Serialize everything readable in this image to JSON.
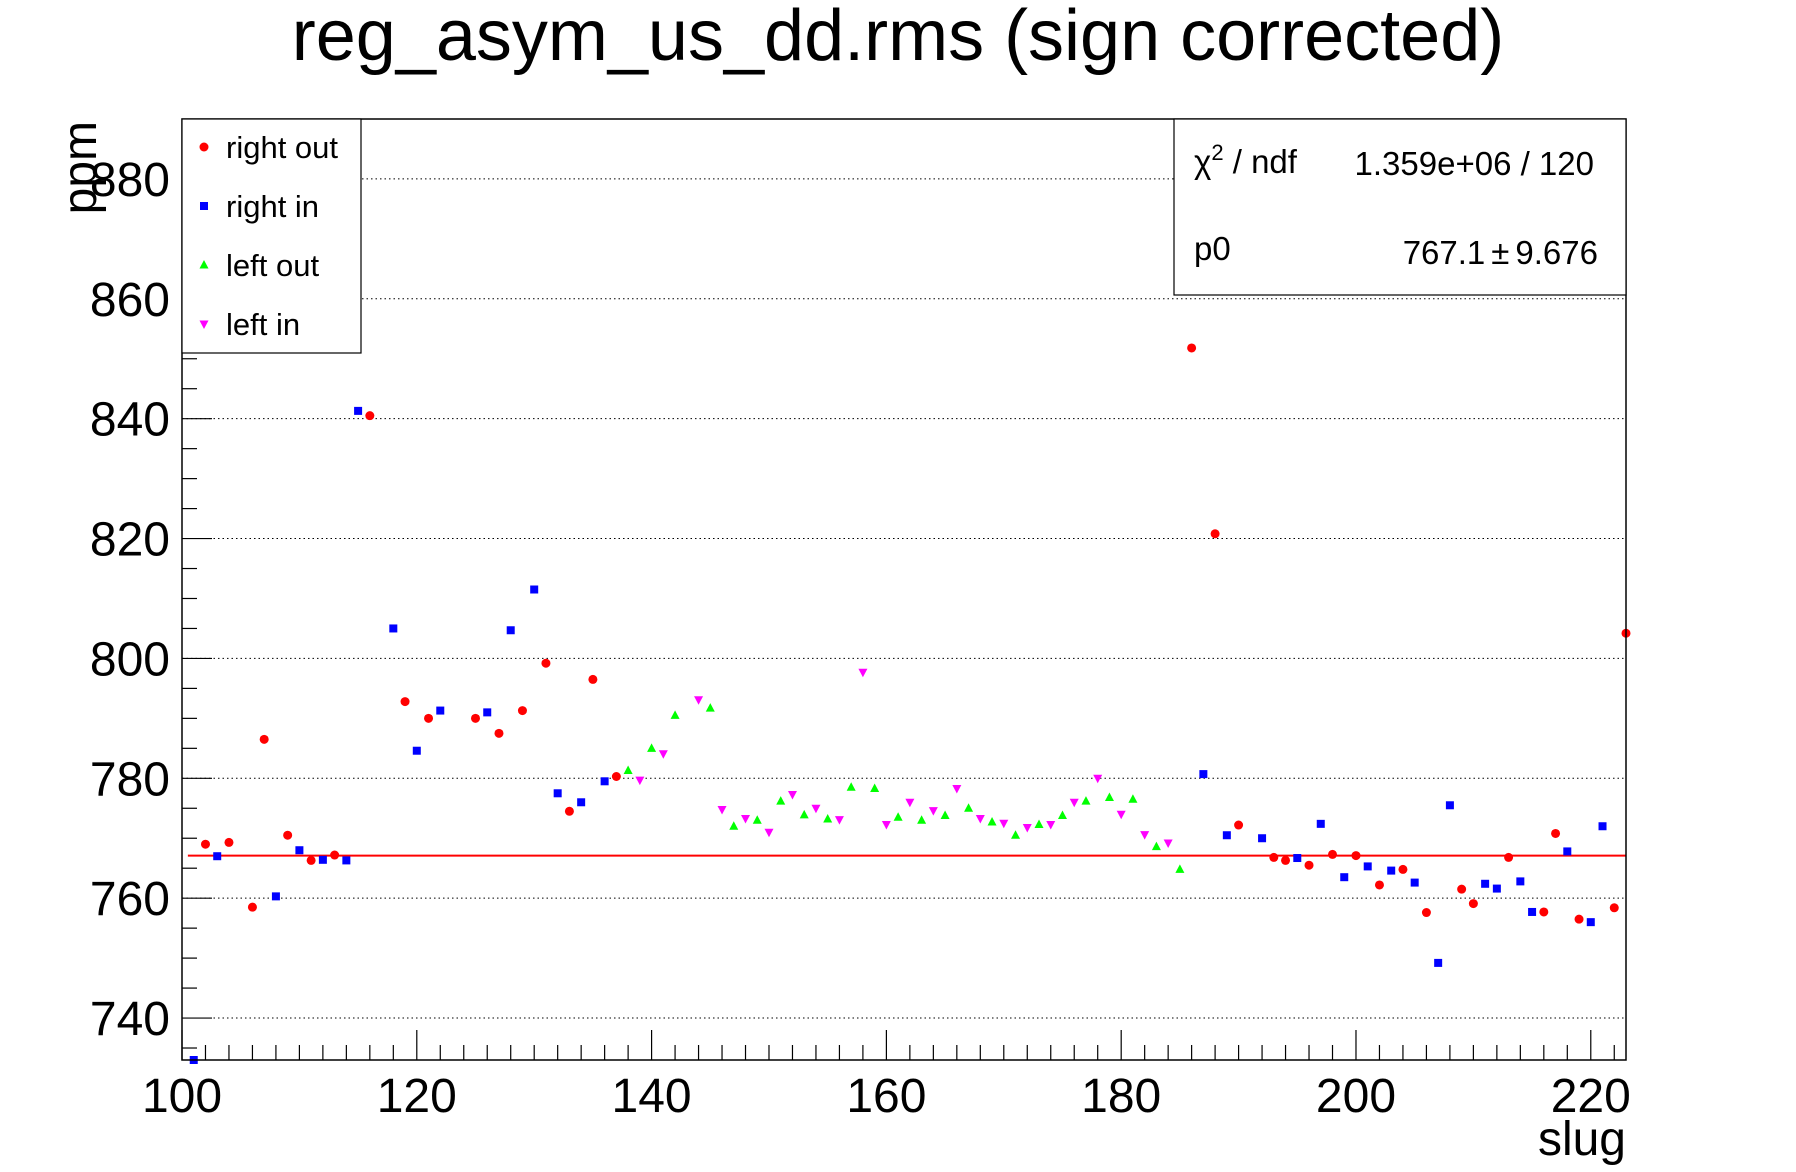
{
  "chart_data": {
    "type": "scatter",
    "title": "reg_asym_us_dd.rms (sign corrected)",
    "xlabel": "slug",
    "ylabel": "ppm",
    "xlim": [
      100,
      223
    ],
    "ylim": [
      733,
      890
    ],
    "x_ticks": [
      100,
      120,
      140,
      160,
      180,
      200,
      220
    ],
    "y_ticks": [
      740,
      760,
      780,
      800,
      820,
      840,
      860,
      880
    ],
    "grid": "horizontal dotted",
    "legend_position": "top-left",
    "fit_box_position": "top-right",
    "series": [
      {
        "name": "right out",
        "color": "#ff0000",
        "marker": "circle",
        "points": [
          [
            102,
            769
          ],
          [
            104,
            769.3
          ],
          [
            106,
            758.5
          ],
          [
            107,
            786.5
          ],
          [
            109,
            770.5
          ],
          [
            111,
            766.3
          ],
          [
            113,
            767.2
          ],
          [
            116,
            840.5
          ],
          [
            119,
            792.8
          ],
          [
            121,
            790
          ],
          [
            125,
            790
          ],
          [
            127,
            787.5
          ],
          [
            129,
            791.3
          ],
          [
            131,
            799.2
          ],
          [
            133,
            774.5
          ],
          [
            135,
            796.5
          ],
          [
            137,
            780.3
          ],
          [
            186,
            851.8
          ],
          [
            188,
            820.8
          ],
          [
            190,
            772.2
          ],
          [
            193,
            766.8
          ],
          [
            194,
            766.3
          ],
          [
            196,
            765.5
          ],
          [
            198,
            767.3
          ],
          [
            200,
            767.1
          ],
          [
            202,
            762.2
          ],
          [
            204,
            764.8
          ],
          [
            206,
            757.6
          ],
          [
            209,
            761.5
          ],
          [
            210,
            759.1
          ],
          [
            213,
            766.8
          ],
          [
            216,
            757.7
          ],
          [
            217,
            770.8
          ],
          [
            219,
            756.5
          ],
          [
            222,
            758.4
          ],
          [
            223,
            804.2
          ]
        ]
      },
      {
        "name": "right in",
        "color": "#0000ff",
        "marker": "square",
        "points": [
          [
            101,
            733
          ],
          [
            103,
            767
          ],
          [
            108,
            760.3
          ],
          [
            110,
            768
          ],
          [
            112,
            766.4
          ],
          [
            114,
            766.3
          ],
          [
            115,
            841.3
          ],
          [
            118,
            805
          ],
          [
            120,
            784.6
          ],
          [
            122,
            791.3
          ],
          [
            126,
            791
          ],
          [
            128,
            804.7
          ],
          [
            130,
            811.5
          ],
          [
            132,
            777.5
          ],
          [
            134,
            776
          ],
          [
            136,
            779.5
          ],
          [
            187,
            780.7
          ],
          [
            189,
            770.5
          ],
          [
            192,
            770
          ],
          [
            195,
            766.7
          ],
          [
            197,
            772.4
          ],
          [
            199,
            763.5
          ],
          [
            201,
            765.3
          ],
          [
            203,
            764.6
          ],
          [
            205,
            762.6
          ],
          [
            207,
            749.2
          ],
          [
            208,
            775.5
          ],
          [
            211,
            762.4
          ],
          [
            212,
            761.6
          ],
          [
            214,
            762.8
          ],
          [
            215,
            757.7
          ],
          [
            218,
            767.8
          ],
          [
            220,
            756
          ],
          [
            221,
            772
          ]
        ]
      },
      {
        "name": "left out",
        "color": "#00ff00",
        "marker": "triangle-up",
        "points": [
          [
            138,
            781.3
          ],
          [
            140,
            785
          ],
          [
            142,
            790.5
          ],
          [
            145,
            791.7
          ],
          [
            147,
            772
          ],
          [
            149,
            773
          ],
          [
            151,
            776.2
          ],
          [
            153,
            773.9
          ],
          [
            155,
            773.2
          ],
          [
            157,
            778.5
          ],
          [
            159,
            778.3
          ],
          [
            161,
            773.5
          ],
          [
            163,
            773
          ],
          [
            165,
            773.8
          ],
          [
            167,
            775
          ],
          [
            169,
            772.7
          ],
          [
            171,
            770.5
          ],
          [
            173,
            772.3
          ],
          [
            175,
            773.8
          ],
          [
            177,
            776.2
          ],
          [
            179,
            776.8
          ],
          [
            181,
            776.5
          ],
          [
            183,
            768.6
          ],
          [
            185,
            764.8
          ]
        ]
      },
      {
        "name": "left in",
        "color": "#ff00ff",
        "marker": "triangle-down",
        "points": [
          [
            139,
            779.7
          ],
          [
            141,
            784.1
          ],
          [
            144,
            793.1
          ],
          [
            146,
            774.8
          ],
          [
            148,
            773.3
          ],
          [
            150,
            771
          ],
          [
            152,
            777.3
          ],
          [
            154,
            775
          ],
          [
            156,
            773.1
          ],
          [
            158,
            797.7
          ],
          [
            160,
            772.3
          ],
          [
            162,
            776
          ],
          [
            164,
            774.6
          ],
          [
            166,
            778.3
          ],
          [
            168,
            773.3
          ],
          [
            170,
            772.5
          ],
          [
            172,
            771.8
          ],
          [
            174,
            772.3
          ],
          [
            176,
            776
          ],
          [
            178,
            780
          ],
          [
            180,
            774
          ],
          [
            182,
            770.6
          ],
          [
            184,
            769.2
          ]
        ]
      }
    ],
    "fit": {
      "name": "p0",
      "value": 767.1,
      "color": "#ff0000",
      "x_range": [
        100.5,
        223
      ],
      "chi2_label": "χ",
      "chi2_sup": "2",
      "ndf_label": " / ndf",
      "chi2_value": "1.359e+06 / 120",
      "p0_label": "p0",
      "p0_value": "767.1",
      "pm_symbol": "±",
      "p0_error": "9.676"
    }
  }
}
